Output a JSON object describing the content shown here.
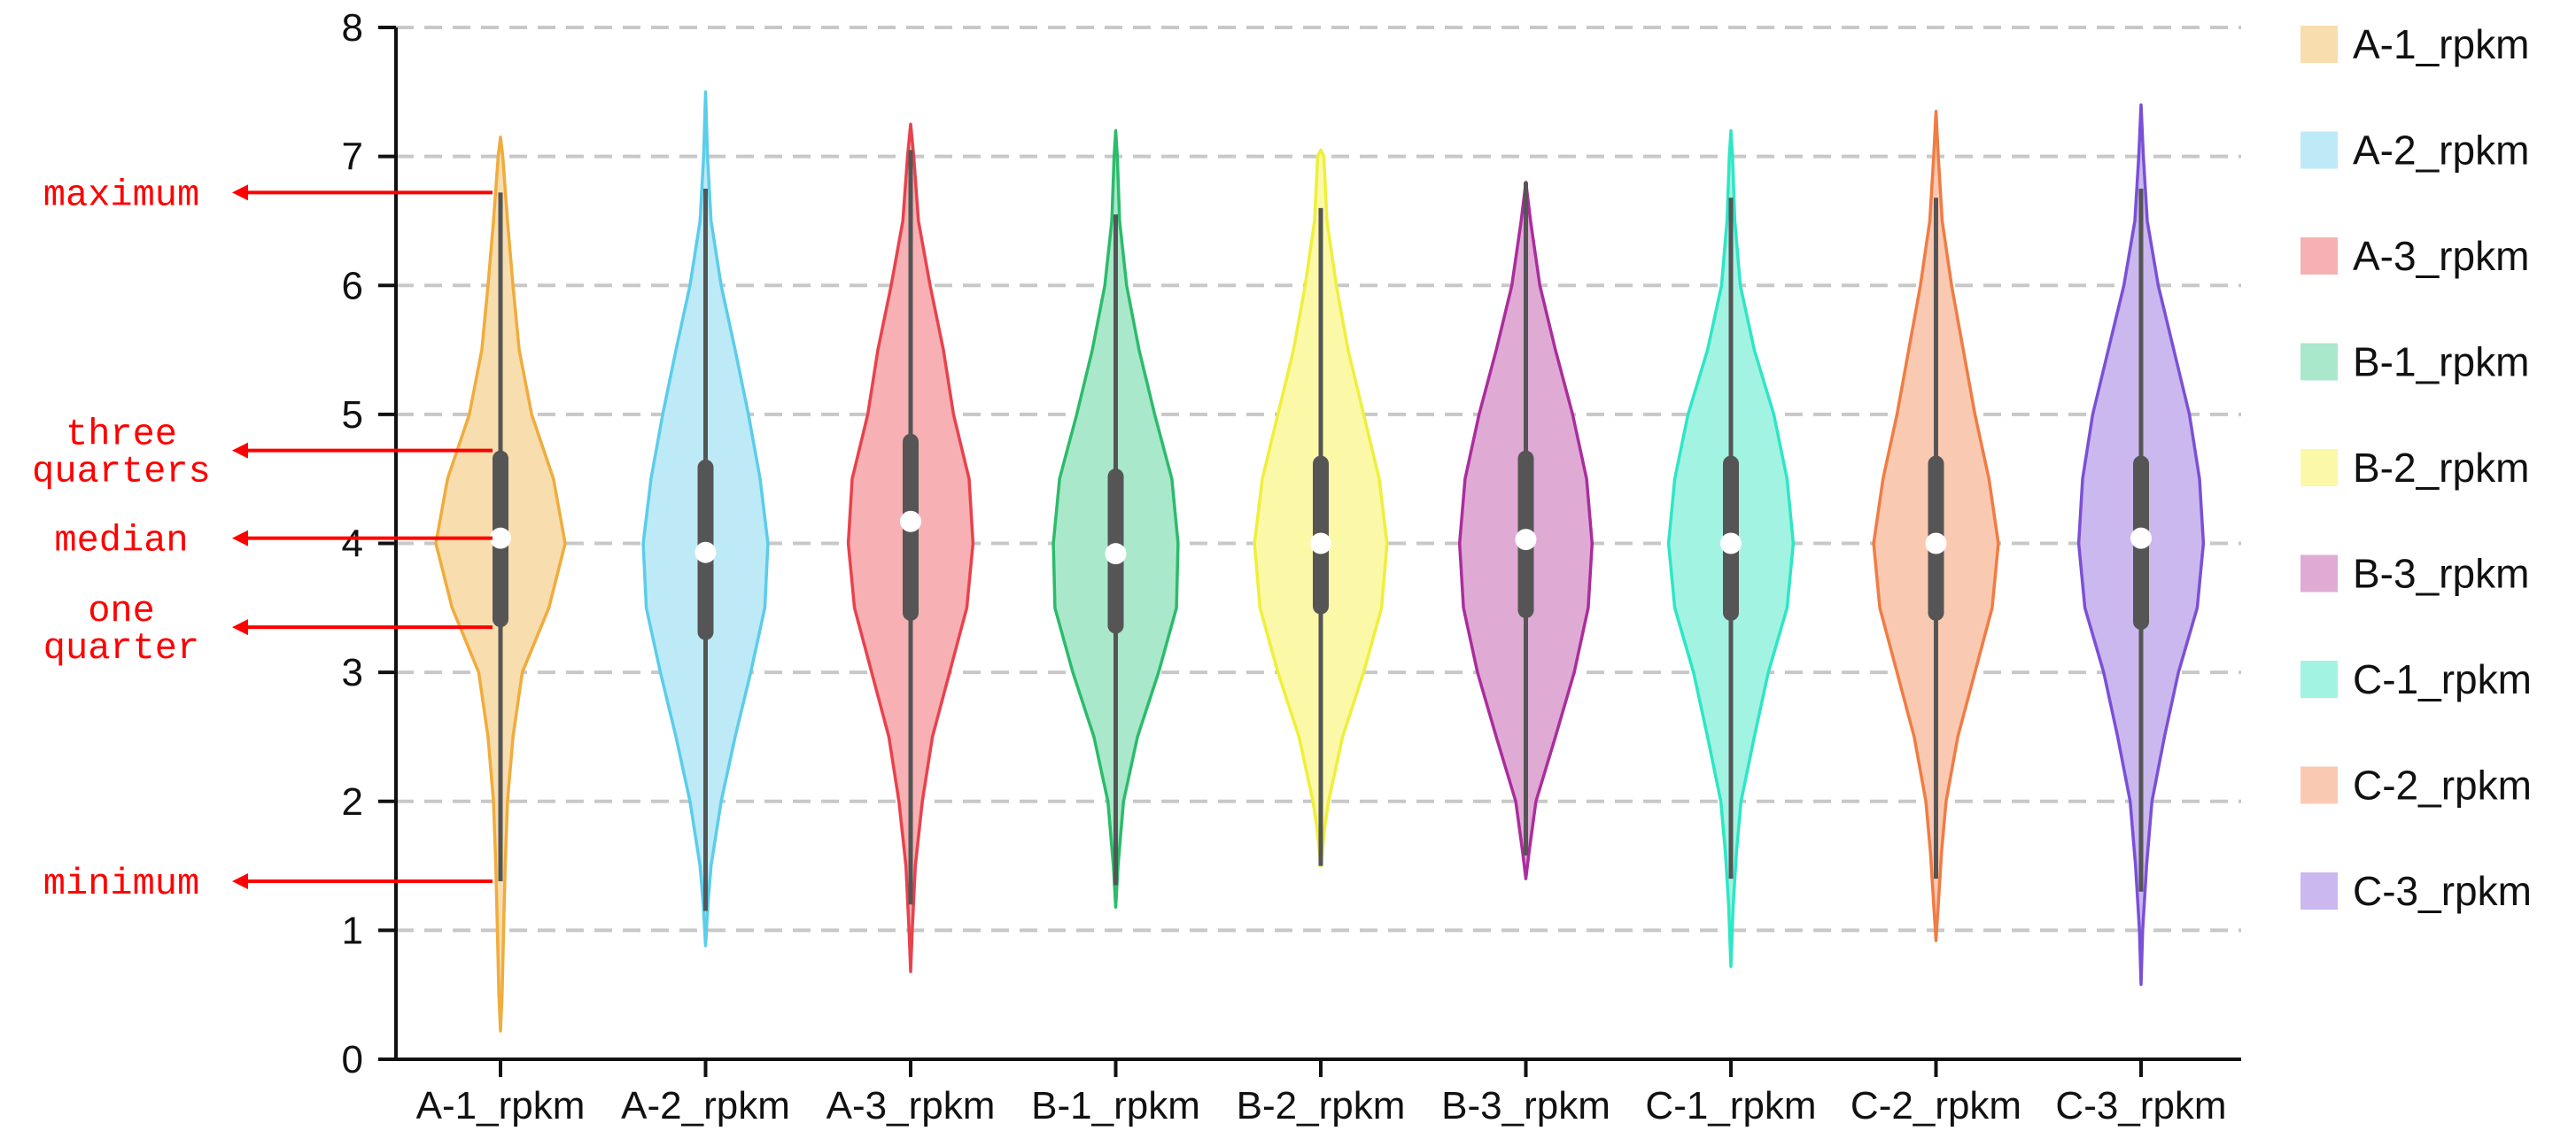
{
  "chart_data": {
    "type": "violin",
    "title": "",
    "xlabel": "",
    "ylabel": "",
    "ylim": [
      0,
      8
    ],
    "yticks": [
      0,
      1,
      2,
      3,
      4,
      5,
      6,
      7,
      8
    ],
    "ytick_labels": [
      "0",
      "1",
      "2",
      "3",
      "4",
      "5",
      "6",
      "7",
      "8"
    ],
    "grid": "horizontal dashed",
    "legend_position": "right",
    "annotations": [
      {
        "lines": [
          "maximum"
        ],
        "value": 6.72
      },
      {
        "lines": [
          "three",
          "quarters"
        ],
        "value": 4.72
      },
      {
        "lines": [
          "median"
        ],
        "value": 4.04
      },
      {
        "lines": [
          "one",
          "quarter"
        ],
        "value": 3.35
      },
      {
        "lines": [
          "minimum"
        ],
        "value": 1.38
      }
    ],
    "annotation_color": "#ff0000",
    "series": [
      {
        "name": "A-1_rpkm",
        "color": "#f0ac3c",
        "fill": "#f8ddae",
        "min": 0.22,
        "max": 7.15,
        "whisker_low": 1.38,
        "whisker_high": 6.72,
        "q1": 3.35,
        "median": 4.04,
        "q3": 4.72,
        "density": [
          [
            0.22,
            0.0
          ],
          [
            0.5,
            0.02
          ],
          [
            1.0,
            0.04
          ],
          [
            1.5,
            0.06
          ],
          [
            2.0,
            0.09
          ],
          [
            2.5,
            0.16
          ],
          [
            3.0,
            0.28
          ],
          [
            3.5,
            0.62
          ],
          [
            4.0,
            0.83
          ],
          [
            4.5,
            0.68
          ],
          [
            5.0,
            0.4
          ],
          [
            5.5,
            0.24
          ],
          [
            6.0,
            0.16
          ],
          [
            6.5,
            0.09
          ],
          [
            7.0,
            0.03
          ],
          [
            7.15,
            0.0
          ]
        ]
      },
      {
        "name": "A-2_rpkm",
        "color": "#5bcdea",
        "fill": "#bdeaf6",
        "min": 0.88,
        "max": 7.5,
        "whisker_low": 1.15,
        "whisker_high": 6.75,
        "q1": 3.25,
        "median": 3.93,
        "q3": 4.65,
        "density": [
          [
            0.88,
            0.0
          ],
          [
            1.2,
            0.03
          ],
          [
            1.5,
            0.07
          ],
          [
            2.0,
            0.2
          ],
          [
            2.5,
            0.38
          ],
          [
            3.0,
            0.58
          ],
          [
            3.5,
            0.76
          ],
          [
            4.0,
            0.8
          ],
          [
            4.5,
            0.7
          ],
          [
            5.0,
            0.55
          ],
          [
            5.5,
            0.38
          ],
          [
            6.0,
            0.2
          ],
          [
            6.5,
            0.07
          ],
          [
            7.0,
            0.025
          ],
          [
            7.5,
            0.0
          ]
        ]
      },
      {
        "name": "A-3_rpkm",
        "color": "#e8424c",
        "fill": "#f7b0b3",
        "min": 0.68,
        "max": 7.25,
        "whisker_low": 1.2,
        "whisker_high": 7.05,
        "q1": 3.4,
        "median": 4.17,
        "q3": 4.85,
        "density": [
          [
            0.68,
            0.0
          ],
          [
            1.0,
            0.02
          ],
          [
            1.5,
            0.06
          ],
          [
            2.0,
            0.15
          ],
          [
            2.5,
            0.28
          ],
          [
            3.0,
            0.5
          ],
          [
            3.5,
            0.72
          ],
          [
            4.0,
            0.8
          ],
          [
            4.5,
            0.75
          ],
          [
            5.0,
            0.55
          ],
          [
            5.5,
            0.42
          ],
          [
            6.0,
            0.25
          ],
          [
            6.5,
            0.1
          ],
          [
            7.0,
            0.04
          ],
          [
            7.25,
            0.0
          ]
        ]
      },
      {
        "name": "B-1_rpkm",
        "color": "#2cbb6b",
        "fill": "#a9e8cb",
        "min": 1.18,
        "max": 7.2,
        "whisker_low": 1.35,
        "whisker_high": 6.55,
        "q1": 3.3,
        "median": 3.92,
        "q3": 4.58,
        "density": [
          [
            1.18,
            0.0
          ],
          [
            1.5,
            0.03
          ],
          [
            2.0,
            0.1
          ],
          [
            2.5,
            0.28
          ],
          [
            3.0,
            0.55
          ],
          [
            3.5,
            0.78
          ],
          [
            4.0,
            0.8
          ],
          [
            4.5,
            0.72
          ],
          [
            5.0,
            0.5
          ],
          [
            5.5,
            0.3
          ],
          [
            6.0,
            0.14
          ],
          [
            6.5,
            0.05
          ],
          [
            7.0,
            0.02
          ],
          [
            7.2,
            0.0
          ]
        ]
      },
      {
        "name": "B-2_rpkm",
        "color": "#efef3c",
        "fill": "#fbf8a8",
        "min": 1.5,
        "max": 7.05,
        "whisker_low": 1.5,
        "whisker_high": 6.6,
        "q1": 3.45,
        "median": 4.0,
        "q3": 4.68,
        "density": [
          [
            1.5,
            0.0
          ],
          [
            1.8,
            0.05
          ],
          [
            2.0,
            0.1
          ],
          [
            2.5,
            0.28
          ],
          [
            3.0,
            0.55
          ],
          [
            3.5,
            0.78
          ],
          [
            4.0,
            0.85
          ],
          [
            4.5,
            0.75
          ],
          [
            5.0,
            0.55
          ],
          [
            5.5,
            0.35
          ],
          [
            6.0,
            0.2
          ],
          [
            6.5,
            0.08
          ],
          [
            7.0,
            0.04
          ],
          [
            7.05,
            0.0
          ]
        ]
      },
      {
        "name": "B-3_rpkm",
        "color": "#ab2d9c",
        "fill": "#dfabd4",
        "min": 1.4,
        "max": 6.8,
        "whisker_low": 1.58,
        "whisker_high": 6.8,
        "q1": 3.42,
        "median": 4.03,
        "q3": 4.72,
        "density": [
          [
            1.4,
            0.0
          ],
          [
            1.6,
            0.04
          ],
          [
            2.0,
            0.13
          ],
          [
            2.5,
            0.38
          ],
          [
            3.0,
            0.62
          ],
          [
            3.5,
            0.8
          ],
          [
            4.0,
            0.85
          ],
          [
            4.5,
            0.78
          ],
          [
            5.0,
            0.6
          ],
          [
            5.5,
            0.38
          ],
          [
            6.0,
            0.18
          ],
          [
            6.5,
            0.06
          ],
          [
            6.8,
            0.0
          ]
        ]
      },
      {
        "name": "C-1_rpkm",
        "color": "#2ee6c6",
        "fill": "#a3f3e2",
        "min": 0.72,
        "max": 7.2,
        "whisker_low": 1.4,
        "whisker_high": 6.68,
        "q1": 3.4,
        "median": 4.0,
        "q3": 4.68,
        "density": [
          [
            0.72,
            0.0
          ],
          [
            1.2,
            0.03
          ],
          [
            1.6,
            0.07
          ],
          [
            2.0,
            0.13
          ],
          [
            2.5,
            0.3
          ],
          [
            3.0,
            0.48
          ],
          [
            3.5,
            0.72
          ],
          [
            4.0,
            0.8
          ],
          [
            4.5,
            0.72
          ],
          [
            5.0,
            0.55
          ],
          [
            5.5,
            0.3
          ],
          [
            6.0,
            0.12
          ],
          [
            6.5,
            0.05
          ],
          [
            7.0,
            0.02
          ],
          [
            7.2,
            0.0
          ]
        ]
      },
      {
        "name": "C-2_rpkm",
        "color": "#f07c44",
        "fill": "#fac9b2",
        "min": 0.92,
        "max": 7.35,
        "whisker_low": 1.4,
        "whisker_high": 6.68,
        "q1": 3.4,
        "median": 4.0,
        "q3": 4.68,
        "density": [
          [
            0.92,
            0.0
          ],
          [
            1.2,
            0.03
          ],
          [
            1.6,
            0.07
          ],
          [
            2.0,
            0.13
          ],
          [
            2.5,
            0.28
          ],
          [
            3.0,
            0.5
          ],
          [
            3.5,
            0.72
          ],
          [
            4.0,
            0.8
          ],
          [
            4.5,
            0.68
          ],
          [
            5.0,
            0.5
          ],
          [
            5.5,
            0.35
          ],
          [
            6.0,
            0.2
          ],
          [
            6.5,
            0.08
          ],
          [
            7.0,
            0.03
          ],
          [
            7.35,
            0.0
          ]
        ]
      },
      {
        "name": "C-3_rpkm",
        "color": "#7a50d6",
        "fill": "#cbb8ef",
        "min": 0.58,
        "max": 7.4,
        "whisker_low": 1.3,
        "whisker_high": 6.75,
        "q1": 3.33,
        "median": 4.04,
        "q3": 4.68,
        "density": [
          [
            0.58,
            0.0
          ],
          [
            1.0,
            0.02
          ],
          [
            1.5,
            0.07
          ],
          [
            2.0,
            0.14
          ],
          [
            2.5,
            0.3
          ],
          [
            3.0,
            0.48
          ],
          [
            3.5,
            0.72
          ],
          [
            4.0,
            0.8
          ],
          [
            4.5,
            0.75
          ],
          [
            5.0,
            0.62
          ],
          [
            5.5,
            0.42
          ],
          [
            6.0,
            0.22
          ],
          [
            6.5,
            0.08
          ],
          [
            7.0,
            0.03
          ],
          [
            7.4,
            0.0
          ]
        ]
      }
    ]
  }
}
